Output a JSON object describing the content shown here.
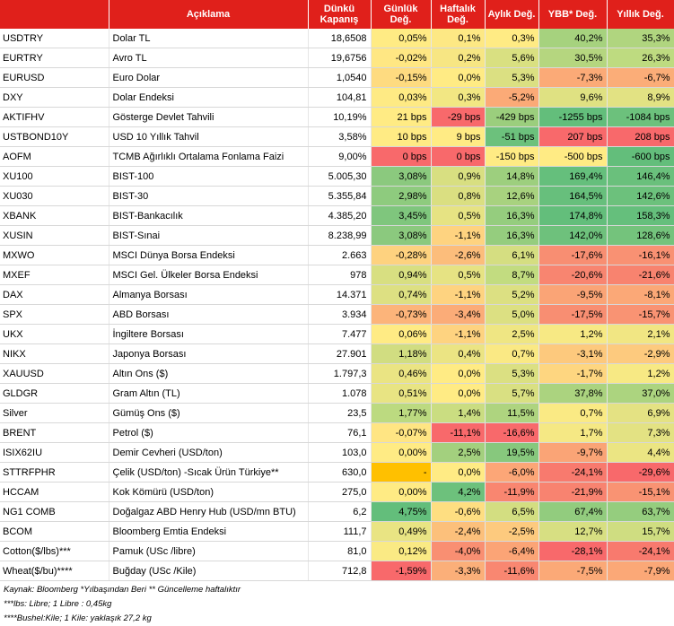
{
  "headers": {
    "code": "",
    "description": "Açıklama",
    "close": "Dünkü Kapanış",
    "daily": "Günlük Değ.",
    "weekly": "Haftalık Değ.",
    "monthly": "Aylık Değ.",
    "ytd": "YBB* Değ.",
    "yearly": "Yıllık Değ."
  },
  "rows": [
    {
      "code": "USDTRY",
      "desc": "Dolar TL",
      "close": "18,6508",
      "daily": "0,05%",
      "weekly": "0,1%",
      "monthly": "0,3%",
      "ytd": "40,2%",
      "yearly": "35,3%",
      "colors": [
        "#ffeb84",
        "#fde884",
        "#ffeb84",
        "#a6d27e",
        "#b0d57f"
      ]
    },
    {
      "code": "EURTRY",
      "desc": "Avro TL",
      "close": "19,6756",
      "daily": "-0,02%",
      "weekly": "0,2%",
      "monthly": "5,6%",
      "ytd": "30,5%",
      "yearly": "26,3%",
      "colors": [
        "#ffe783",
        "#f7e683",
        "#d9e081",
        "#b5d67f",
        "#bedb80"
      ]
    },
    {
      "code": "EURUSD",
      "desc": "Euro Dolar",
      "close": "1,0540",
      "daily": "-0,15%",
      "weekly": "0,0%",
      "monthly": "5,3%",
      "ytd": "-7,3%",
      "yearly": "-6,7%",
      "colors": [
        "#fedb80",
        "#ffeb84",
        "#dbe082",
        "#fbaa77",
        "#fbad78"
      ]
    },
    {
      "code": "DXY",
      "desc": "Dolar Endeksi",
      "close": "104,81",
      "daily": "0,03%",
      "weekly": "0,3%",
      "monthly": "-5,2%",
      "ytd": "9,6%",
      "yearly": "8,9%",
      "colors": [
        "#feea84",
        "#f2e783",
        "#fbaa77",
        "#dfe182",
        "#e2e283"
      ]
    },
    {
      "code": "AKTIFHV",
      "desc": "Gösterge Devlet Tahvili",
      "close": "10,19%",
      "daily": "21 bps",
      "weekly": "-29 bps",
      "monthly": "-429 bps",
      "ytd": "-1255 bps",
      "yearly": "-1084 bps",
      "colors": [
        "#ffeb84",
        "#f8696b",
        "#9bce7d",
        "#63be7b",
        "#6cc17c"
      ]
    },
    {
      "code": "USTBOND10Y",
      "desc": "USD 10 Yıllık Tahvil",
      "close": "3,58%",
      "daily": "10 bps",
      "weekly": "9 bps",
      "monthly": "-51 bps",
      "ytd": "207 bps",
      "yearly": "208 bps",
      "colors": [
        "#ffeb84",
        "#ffeb84",
        "#6cc17c",
        "#f8696b",
        "#f8696b"
      ]
    },
    {
      "code": "AOFM",
      "desc": "TCMB Ağırlıklı Ortalama Fonlama Faizi",
      "close": "9,00%",
      "daily": "0 bps",
      "weekly": "0 bps",
      "monthly": "-150 bps",
      "ytd": "-500 bps",
      "yearly": "-600 bps",
      "colors": [
        "#f8696b",
        "#f8696b",
        "#ffeb84",
        "#ffeb84",
        "#63be7b"
      ]
    },
    {
      "code": "XU100",
      "desc": "BIST-100",
      "close": "5.005,30",
      "daily": "3,08%",
      "weekly": "0,9%",
      "monthly": "14,8%",
      "ytd": "169,4%",
      "yearly": "146,4%",
      "colors": [
        "#8bc97e",
        "#d8df81",
        "#9dcf7e",
        "#65bf7c",
        "#6ac07c"
      ]
    },
    {
      "code": "XU030",
      "desc": "BIST-30",
      "close": "5.355,84",
      "daily": "2,98%",
      "weekly": "0,8%",
      "monthly": "12,6%",
      "ytd": "164,5%",
      "yearly": "142,6%",
      "colors": [
        "#8ecb7e",
        "#dadf81",
        "#a8d27f",
        "#67bf7c",
        "#6cc17c"
      ]
    },
    {
      "code": "XBANK",
      "desc": "BIST-Bankacılık",
      "close": "4.385,20",
      "daily": "3,45%",
      "weekly": "0,5%",
      "monthly": "16,3%",
      "ytd": "174,8%",
      "yearly": "158,3%",
      "colors": [
        "#7fc67d",
        "#e6e383",
        "#95cd7e",
        "#63be7b",
        "#65bf7c"
      ]
    },
    {
      "code": "XUSIN",
      "desc": "BIST-Sınai",
      "close": "8.238,99",
      "daily": "3,08%",
      "weekly": "-1,1%",
      "monthly": "16,3%",
      "ytd": "142,0%",
      "yearly": "128,6%",
      "colors": [
        "#8bc97e",
        "#fed380",
        "#95cd7e",
        "#6ec17c",
        "#74c37c"
      ]
    },
    {
      "code": "MXWO",
      "desc": "MSCI Dünya Borsa Endeksi",
      "close": "2.663",
      "daily": "-0,28%",
      "weekly": "-2,6%",
      "monthly": "6,1%",
      "ytd": "-17,6%",
      "yearly": "-16,1%",
      "colors": [
        "#fed27f",
        "#fcbd7b",
        "#d5de81",
        "#f88e72",
        "#f99173"
      ]
    },
    {
      "code": "MXEF",
      "desc": "MSCI Gel. Ülkeler Borsa Endeksi",
      "close": "978",
      "daily": "0,94%",
      "weekly": "0,5%",
      "monthly": "8,7%",
      "ytd": "-20,6%",
      "yearly": "-21,6%",
      "colors": [
        "#d8df81",
        "#e6e383",
        "#c2dc80",
        "#f88570",
        "#f8836f"
      ]
    },
    {
      "code": "DAX",
      "desc": "Almanya Borsası",
      "close": "14.371",
      "daily": "0,74%",
      "weekly": "-1,1%",
      "monthly": "5,2%",
      "ytd": "-9,5%",
      "yearly": "-8,1%",
      "colors": [
        "#dde082",
        "#fed380",
        "#dce082",
        "#faa476",
        "#fba877"
      ]
    },
    {
      "code": "SPX",
      "desc": "ABD Borsası",
      "close": "3.934",
      "daily": "-0,73%",
      "weekly": "-3,4%",
      "monthly": "5,0%",
      "ytd": "-17,5%",
      "yearly": "-15,7%",
      "colors": [
        "#fcb47a",
        "#fbac78",
        "#dce082",
        "#f88e72",
        "#f99373"
      ]
    },
    {
      "code": "UKX",
      "desc": "İngiltere Borsası",
      "close": "7.477",
      "daily": "0,06%",
      "weekly": "-1,1%",
      "monthly": "2,5%",
      "ytd": "1,2%",
      "yearly": "2,1%",
      "colors": [
        "#ffeb84",
        "#fed380",
        "#efe683",
        "#f7e984",
        "#f1e683"
      ]
    },
    {
      "code": "NIKX",
      "desc": "Japonya Borsası",
      "close": "27.901",
      "daily": "1,18%",
      "weekly": "0,4%",
      "monthly": "0,7%",
      "ytd": "-3,1%",
      "yearly": "-2,9%",
      "colors": [
        "#d1dd81",
        "#ebe483",
        "#fae984",
        "#fdc97d",
        "#fdca7e"
      ]
    },
    {
      "code": "XAUUSD",
      "desc": "Altın Ons ($)",
      "close": "1.797,3",
      "daily": "0,46%",
      "weekly": "0,0%",
      "monthly": "5,3%",
      "ytd": "-1,7%",
      "yearly": "1,2%",
      "colors": [
        "#eae483",
        "#ffeb84",
        "#dbe082",
        "#fed680",
        "#f7e984"
      ]
    },
    {
      "code": "GLDGR",
      "desc": "Gram Altın (TL)",
      "close": "1.078",
      "daily": "0,51%",
      "weekly": "0,0%",
      "monthly": "5,7%",
      "ytd": "37,8%",
      "yearly": "37,0%",
      "colors": [
        "#e8e483",
        "#ffeb84",
        "#d9e082",
        "#abd37f",
        "#acd47f"
      ]
    },
    {
      "code": "Silver",
      "desc": "Gümüş Ons ($)",
      "close": "23,5",
      "daily": "1,77%",
      "weekly": "1,4%",
      "monthly": "11,5%",
      "ytd": "0,7%",
      "yearly": "6,9%",
      "colors": [
        "#bcda80",
        "#cadd81",
        "#aed47f",
        "#faea84",
        "#e4e283"
      ]
    },
    {
      "code": "BRENT",
      "desc": "Petrol ($)",
      "close": "76,1",
      "daily": "-0,07%",
      "weekly": "-11,1%",
      "monthly": "-16,6%",
      "ytd": "1,7%",
      "yearly": "7,3%",
      "colors": [
        "#ffe583",
        "#f8696b",
        "#f8696b",
        "#f5e884",
        "#e3e283"
      ]
    },
    {
      "code": "ISIX62IU",
      "desc": "Demir Cevheri (USD/ton)",
      "close": "103,0",
      "daily": "0,00%",
      "weekly": "2,5%",
      "monthly": "19,5%",
      "ytd": "-9,7%",
      "yearly": "4,4%",
      "colors": [
        "#ffeb84",
        "#a3d07e",
        "#87c87d",
        "#faa476",
        "#ebe583"
      ]
    },
    {
      "code": "STTRFPHR",
      "desc": "Çelik (USD/ton) -Sıcak Ürün Türkiye**",
      "close": "630,0",
      "daily": "-",
      "weekly": "0,0%",
      "monthly": "-6,0%",
      "ytd": "-24,1%",
      "yearly": "-29,6%",
      "colors": [
        "#ffc000",
        "#ffeb84",
        "#fca677",
        "#f87a6e",
        "#f8696b"
      ]
    },
    {
      "code": "HCCAM",
      "desc": "Kok Kömürü (USD/ton)",
      "close": "275,0",
      "daily": "0,00%",
      "weekly": "4,2%",
      "monthly": "-11,9%",
      "ytd": "-21,9%",
      "yearly": "-15,1%",
      "colors": [
        "#ffeb84",
        "#6dc17c",
        "#f98670",
        "#f88370",
        "#f99373"
      ]
    },
    {
      "code": "NG1 COMB",
      "desc": "Doğalgaz ABD Henry Hub (USD/mn BTU)",
      "close": "6,2",
      "daily": "4,75%",
      "weekly": "-0,6%",
      "monthly": "6,5%",
      "ytd": "67,4%",
      "yearly": "63,7%",
      "colors": [
        "#63be7b",
        "#fede81",
        "#d3de81",
        "#92cc7e",
        "#95cd7e"
      ]
    },
    {
      "code": "BCOM",
      "desc": "Bloomberg Emtia Endeksi",
      "close": "111,7",
      "daily": "0,49%",
      "weekly": "-2,4%",
      "monthly": "-2,5%",
      "ytd": "12,7%",
      "yearly": "15,7%",
      "colors": [
        "#e9e483",
        "#fcc07b",
        "#fdca7e",
        "#d7df82",
        "#cfdd81"
      ]
    },
    {
      "code": "Cotton($/lbs)***",
      "desc": "Pamuk (USc /libre)",
      "close": "81,0",
      "daily": "0,12%",
      "weekly": "-4,0%",
      "monthly": "-6,4%",
      "ytd": "-28,1%",
      "yearly": "-24,1%",
      "colors": [
        "#faea84",
        "#f98f72",
        "#fba476",
        "#f8696b",
        "#f87a6e"
      ]
    },
    {
      "code": "Wheat($/bu)****",
      "desc": "Buğday (USc /Kile)",
      "close": "712,8",
      "daily": "-1,59%",
      "weekly": "-3,3%",
      "monthly": "-11,6%",
      "ytd": "-7,5%",
      "yearly": "-7,9%",
      "colors": [
        "#f8696b",
        "#fbaf79",
        "#f98771",
        "#fba977",
        "#fba877"
      ]
    }
  ],
  "footnotes": [
    "Kaynak: Bloomberg *Yılbaşından Beri  ** Güncelleme haftalıktır",
    "***lbs: Libre; 1 Libre : 0,45kg",
    "****Bushel:Kile; 1 Kile: yaklaşık 27,2 kg"
  ]
}
